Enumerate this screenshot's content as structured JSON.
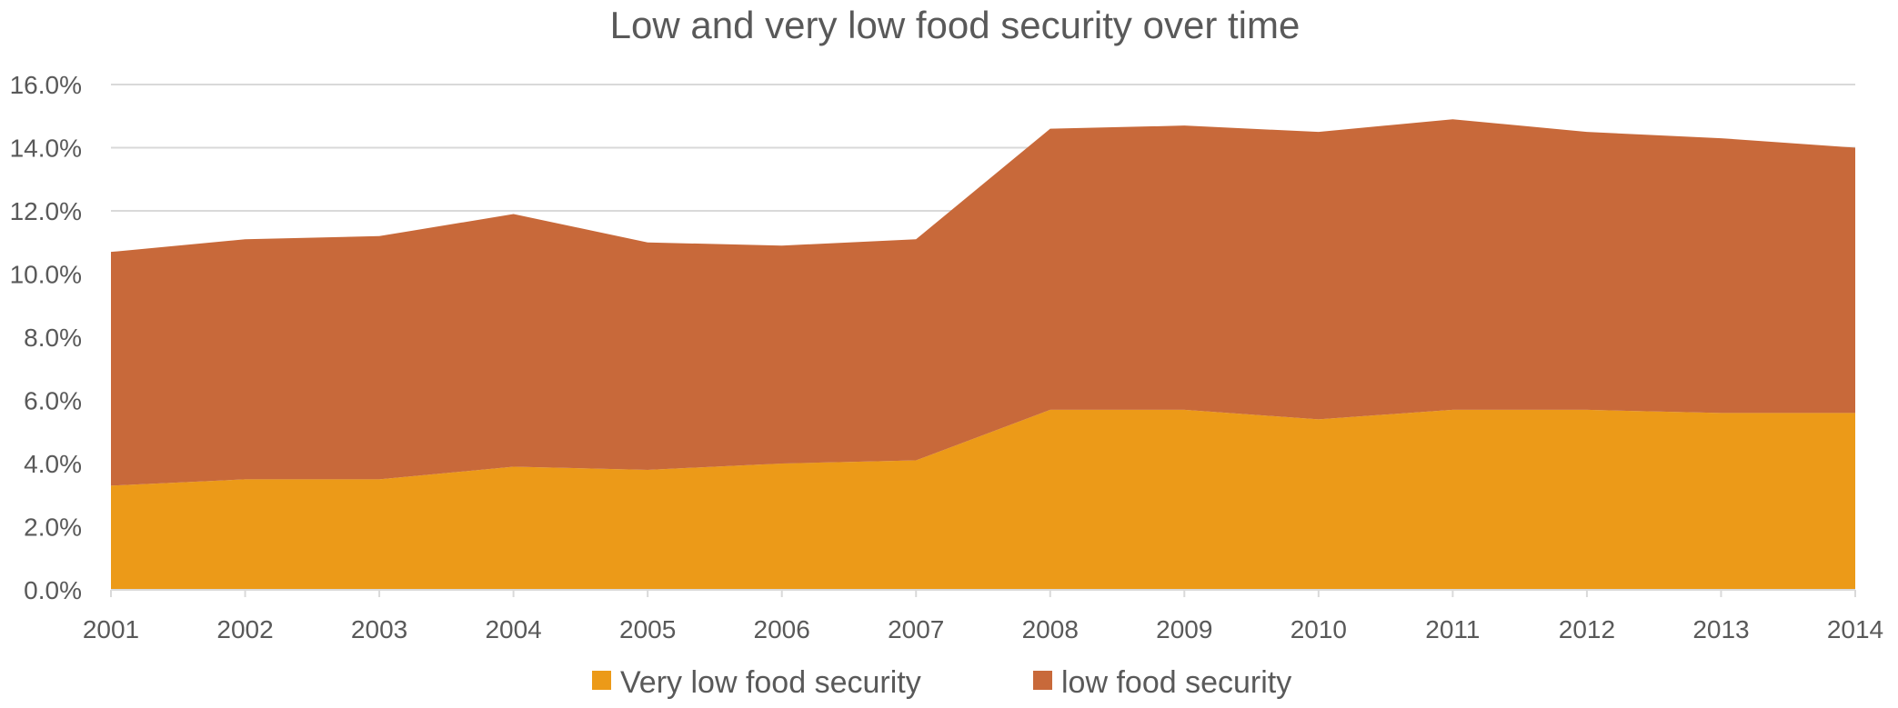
{
  "chart_data": {
    "type": "area",
    "stacked": true,
    "title": "Low and very low food security over time",
    "xlabel": "",
    "ylabel": "",
    "categories": [
      "2001",
      "2002",
      "2003",
      "2004",
      "2005",
      "2006",
      "2007",
      "2008",
      "2009",
      "2010",
      "2011",
      "2012",
      "2013",
      "2014"
    ],
    "ylim": [
      0,
      0.16
    ],
    "y_ticks": [
      "0.0%",
      "2.0%",
      "4.0%",
      "6.0%",
      "8.0%",
      "10.0%",
      "12.0%",
      "14.0%",
      "16.0%"
    ],
    "grid": true,
    "legend_position": "bottom",
    "series": [
      {
        "name": "Very low food security",
        "color": "#EC9A18",
        "values": [
          0.033,
          0.035,
          0.035,
          0.039,
          0.038,
          0.04,
          0.041,
          0.057,
          0.057,
          0.054,
          0.057,
          0.057,
          0.056,
          0.056
        ]
      },
      {
        "name": "low food security",
        "color": "#C8693A",
        "values": [
          0.074,
          0.076,
          0.077,
          0.08,
          0.072,
          0.069,
          0.07,
          0.089,
          0.09,
          0.091,
          0.092,
          0.088,
          0.087,
          0.084
        ]
      }
    ]
  }
}
